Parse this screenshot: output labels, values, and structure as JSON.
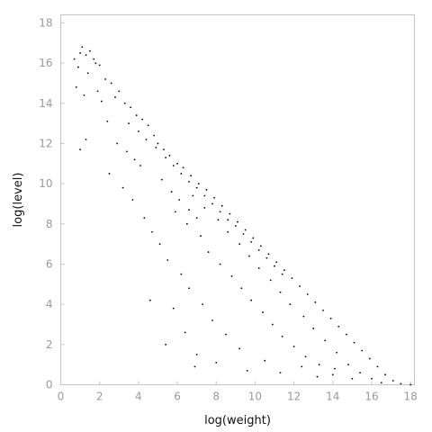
{
  "chart_data": {
    "type": "scatter",
    "title": "",
    "xlabel": "log(weight)",
    "ylabel": "log(level)",
    "xlim": [
      0,
      18.2
    ],
    "ylim": [
      0,
      18.4
    ],
    "x_ticks": [
      0,
      2,
      4,
      6,
      8,
      10,
      12,
      14,
      16,
      18
    ],
    "y_ticks": [
      0,
      2,
      4,
      6,
      8,
      10,
      12,
      14,
      16,
      18
    ],
    "grid": false,
    "legend": "none",
    "marker_color": "#000000",
    "frame_color": "#c4c4c4",
    "tick_label_color": "#9a9a9a",
    "series": [
      {
        "points": [
          [
            0.7,
            16.2
          ],
          [
            1.0,
            16.5
          ],
          [
            1.1,
            16.8
          ],
          [
            1.3,
            16.4
          ],
          [
            1.5,
            16.6
          ],
          [
            1.7,
            16.2
          ],
          [
            1.8,
            16.0
          ],
          [
            0.9,
            15.8
          ],
          [
            1.4,
            15.5
          ],
          [
            2.0,
            15.9
          ],
          [
            2.3,
            15.2
          ],
          [
            2.6,
            15.0
          ],
          [
            1.2,
            14.4
          ],
          [
            1.9,
            14.6
          ],
          [
            2.1,
            14.1
          ],
          [
            2.8,
            14.3
          ],
          [
            3.0,
            14.6
          ],
          [
            3.3,
            14.0
          ],
          [
            3.6,
            13.8
          ],
          [
            3.9,
            13.4
          ],
          [
            2.4,
            13.1
          ],
          [
            4.2,
            13.2
          ],
          [
            4.5,
            12.9
          ],
          [
            0.8,
            14.8
          ],
          [
            1.3,
            12.2
          ],
          [
            1.0,
            11.7
          ],
          [
            2.9,
            12.0
          ],
          [
            3.4,
            11.6
          ],
          [
            3.8,
            11.2
          ],
          [
            4.1,
            10.9
          ],
          [
            4.8,
            12.4
          ],
          [
            5.0,
            12.0
          ],
          [
            5.3,
            11.7
          ],
          [
            5.6,
            11.4
          ],
          [
            6.0,
            11.0
          ],
          [
            6.3,
            10.8
          ],
          [
            6.7,
            10.4
          ],
          [
            7.1,
            10.0
          ],
          [
            7.5,
            9.7
          ],
          [
            7.9,
            9.3
          ],
          [
            8.3,
            8.9
          ],
          [
            8.7,
            8.5
          ],
          [
            9.1,
            8.1
          ],
          [
            9.5,
            7.7
          ],
          [
            9.9,
            7.3
          ],
          [
            10.3,
            6.9
          ],
          [
            10.7,
            6.5
          ],
          [
            11.1,
            6.1
          ],
          [
            11.5,
            5.7
          ],
          [
            11.9,
            5.3
          ],
          [
            12.3,
            4.9
          ],
          [
            12.7,
            4.5
          ],
          [
            13.1,
            4.1
          ],
          [
            13.5,
            3.7
          ],
          [
            13.9,
            3.3
          ],
          [
            14.3,
            2.9
          ],
          [
            14.7,
            2.5
          ],
          [
            15.1,
            2.1
          ],
          [
            15.5,
            1.7
          ],
          [
            15.9,
            1.3
          ],
          [
            16.3,
            0.9
          ],
          [
            16.7,
            0.5
          ],
          [
            17.1,
            0.2
          ],
          [
            2.5,
            10.5
          ],
          [
            3.2,
            9.8
          ],
          [
            3.7,
            9.2
          ],
          [
            4.3,
            8.3
          ],
          [
            4.7,
            7.6
          ],
          [
            5.1,
            7.0
          ],
          [
            5.5,
            6.2
          ],
          [
            6.2,
            5.5
          ],
          [
            6.6,
            4.8
          ],
          [
            7.3,
            4.0
          ],
          [
            7.8,
            3.2
          ],
          [
            8.5,
            2.5
          ],
          [
            9.2,
            1.8
          ],
          [
            5.8,
            3.8
          ],
          [
            6.4,
            2.6
          ],
          [
            7.0,
            1.5
          ],
          [
            4.6,
            4.2
          ],
          [
            5.4,
            2.0
          ],
          [
            6.9,
            0.9
          ],
          [
            8.0,
            1.1
          ],
          [
            9.6,
            0.7
          ],
          [
            10.5,
            1.2
          ],
          [
            11.3,
            0.6
          ],
          [
            12.4,
            0.9
          ],
          [
            13.2,
            0.4
          ],
          [
            14.1,
            0.8
          ],
          [
            15.0,
            0.3
          ],
          [
            5.9,
            8.6
          ],
          [
            6.5,
            8.0
          ],
          [
            7.2,
            7.4
          ],
          [
            7.6,
            6.6
          ],
          [
            8.2,
            6.0
          ],
          [
            8.8,
            5.4
          ],
          [
            9.3,
            4.8
          ],
          [
            9.8,
            4.2
          ],
          [
            10.4,
            3.6
          ],
          [
            10.9,
            3.0
          ],
          [
            11.4,
            2.4
          ],
          [
            12.0,
            1.9
          ],
          [
            12.6,
            1.4
          ],
          [
            13.3,
            1.0
          ],
          [
            14.0,
            0.5
          ],
          [
            6.8,
            9.4
          ],
          [
            7.4,
            8.8
          ],
          [
            8.1,
            8.2
          ],
          [
            8.6,
            7.6
          ],
          [
            9.2,
            7.0
          ],
          [
            9.7,
            6.4
          ],
          [
            10.2,
            5.8
          ],
          [
            10.8,
            5.2
          ],
          [
            11.3,
            4.6
          ],
          [
            11.8,
            4.0
          ],
          [
            12.5,
            3.4
          ],
          [
            13.0,
            2.8
          ],
          [
            13.6,
            2.2
          ],
          [
            14.2,
            1.6
          ],
          [
            14.8,
            1.0
          ],
          [
            15.4,
            0.6
          ],
          [
            16.0,
            0.3
          ],
          [
            16.5,
            0.1
          ],
          [
            17.5,
            0.05
          ],
          [
            18.0,
            0.0
          ],
          [
            5.2,
            10.2
          ],
          [
            5.7,
            9.6
          ],
          [
            6.1,
            9.2
          ],
          [
            6.6,
            8.7
          ],
          [
            7.0,
            8.3
          ],
          [
            3.5,
            13.0
          ],
          [
            4.0,
            12.6
          ],
          [
            4.4,
            12.2
          ],
          [
            4.9,
            11.8
          ],
          [
            5.4,
            11.3
          ],
          [
            5.8,
            10.9
          ],
          [
            6.2,
            10.5
          ],
          [
            6.6,
            10.1
          ],
          [
            7.0,
            9.8
          ],
          [
            7.4,
            9.4
          ],
          [
            7.8,
            9.0
          ],
          [
            8.2,
            8.6
          ],
          [
            8.6,
            8.2
          ],
          [
            9.0,
            7.9
          ],
          [
            9.4,
            7.5
          ],
          [
            9.8,
            7.1
          ],
          [
            10.2,
            6.7
          ],
          [
            10.6,
            6.3
          ],
          [
            11.0,
            5.9
          ],
          [
            11.4,
            5.5
          ]
        ]
      }
    ]
  }
}
